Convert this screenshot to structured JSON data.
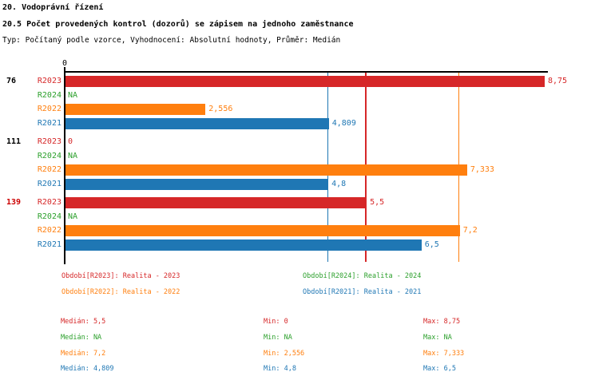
{
  "chart_data": {
    "type": "bar",
    "orientation": "horizontal",
    "title": "20. Vodoprávní řízení",
    "subtitle": "20.5 Počet provedených kontrol (dozorů) se zápisem na jednoho zaměstnance",
    "meta": "Typ: Počítaný podle vzorce, Vyhodnocení: Absolutní hodnoty, Průměr: Medián",
    "x_axis": {
      "min": 0,
      "tick_labels": [
        "0"
      ],
      "axis_max": 8.82,
      "grid": false
    },
    "series_order": [
      "R2023",
      "R2024",
      "R2022",
      "R2021"
    ],
    "groups": [
      {
        "label": "76",
        "label_color": "#000000",
        "bars": [
          {
            "series": "R2023",
            "value": 8.75,
            "display": "8,75",
            "color": "#d62728"
          },
          {
            "series": "R2024",
            "value": null,
            "display": "NA",
            "color": "#2ca02c"
          },
          {
            "series": "R2022",
            "value": 2.556,
            "display": "2,556",
            "color": "#ff7f0e"
          },
          {
            "series": "R2021",
            "value": 4.809,
            "display": "4,809",
            "color": "#1f77b4"
          }
        ]
      },
      {
        "label": "111",
        "label_color": "#000000",
        "bars": [
          {
            "series": "R2023",
            "value": 0,
            "display": "0",
            "color": "#d62728"
          },
          {
            "series": "R2024",
            "value": null,
            "display": "NA",
            "color": "#2ca02c"
          },
          {
            "series": "R2022",
            "value": 7.333,
            "display": "7,333",
            "color": "#ff7f0e"
          },
          {
            "series": "R2021",
            "value": 4.8,
            "display": "4,8",
            "color": "#1f77b4"
          }
        ]
      },
      {
        "label": "139",
        "label_color": "#cc0000",
        "bars": [
          {
            "series": "R2023",
            "value": 5.5,
            "display": "5,5",
            "color": "#d62728"
          },
          {
            "series": "R2024",
            "value": null,
            "display": "NA",
            "color": "#2ca02c"
          },
          {
            "series": "R2022",
            "value": 7.2,
            "display": "7,2",
            "color": "#ff7f0e"
          },
          {
            "series": "R2021",
            "value": 6.5,
            "display": "6,5",
            "color": "#1f77b4"
          }
        ]
      }
    ],
    "median_lines": [
      {
        "series": "R2021",
        "value": 4.809,
        "color": "#1f77b4"
      },
      {
        "series": "R2023",
        "value": 5.5,
        "color": "#d62728"
      },
      {
        "series": "R2022",
        "value": 7.2,
        "color": "#ff7f0e"
      }
    ]
  },
  "legend": {
    "items": [
      {
        "label": "Období[R2023]: Realita - 2023",
        "color": "#d62728"
      },
      {
        "label": "Období[R2024]: Realita - 2024",
        "color": "#2ca02c"
      },
      {
        "label": "Období[R2022]: Realita - 2022",
        "color": "#ff7f0e"
      },
      {
        "label": "Období[R2021]: Realita - 2021",
        "color": "#1f77b4"
      }
    ]
  },
  "stats": {
    "rows": [
      {
        "color": "#d62728",
        "median": "Medián: 5,5",
        "min": "Min: 0",
        "max": "Max: 8,75"
      },
      {
        "color": "#2ca02c",
        "median": "Medián: NA",
        "min": "Min: NA",
        "max": "Max: NA"
      },
      {
        "color": "#ff7f0e",
        "median": "Medián: 7,2",
        "min": "Min: 2,556",
        "max": "Max: 7,333"
      },
      {
        "color": "#1f77b4",
        "median": "Medián: 4,809",
        "min": "Min: 4,8",
        "max": "Max: 6,5"
      }
    ]
  },
  "colors": {
    "axis": "#000000",
    "r2023": "#d62728",
    "r2024": "#2ca02c",
    "r2022": "#ff7f0e",
    "r2021": "#1f77b4",
    "highlight_group": "#cc0000"
  }
}
